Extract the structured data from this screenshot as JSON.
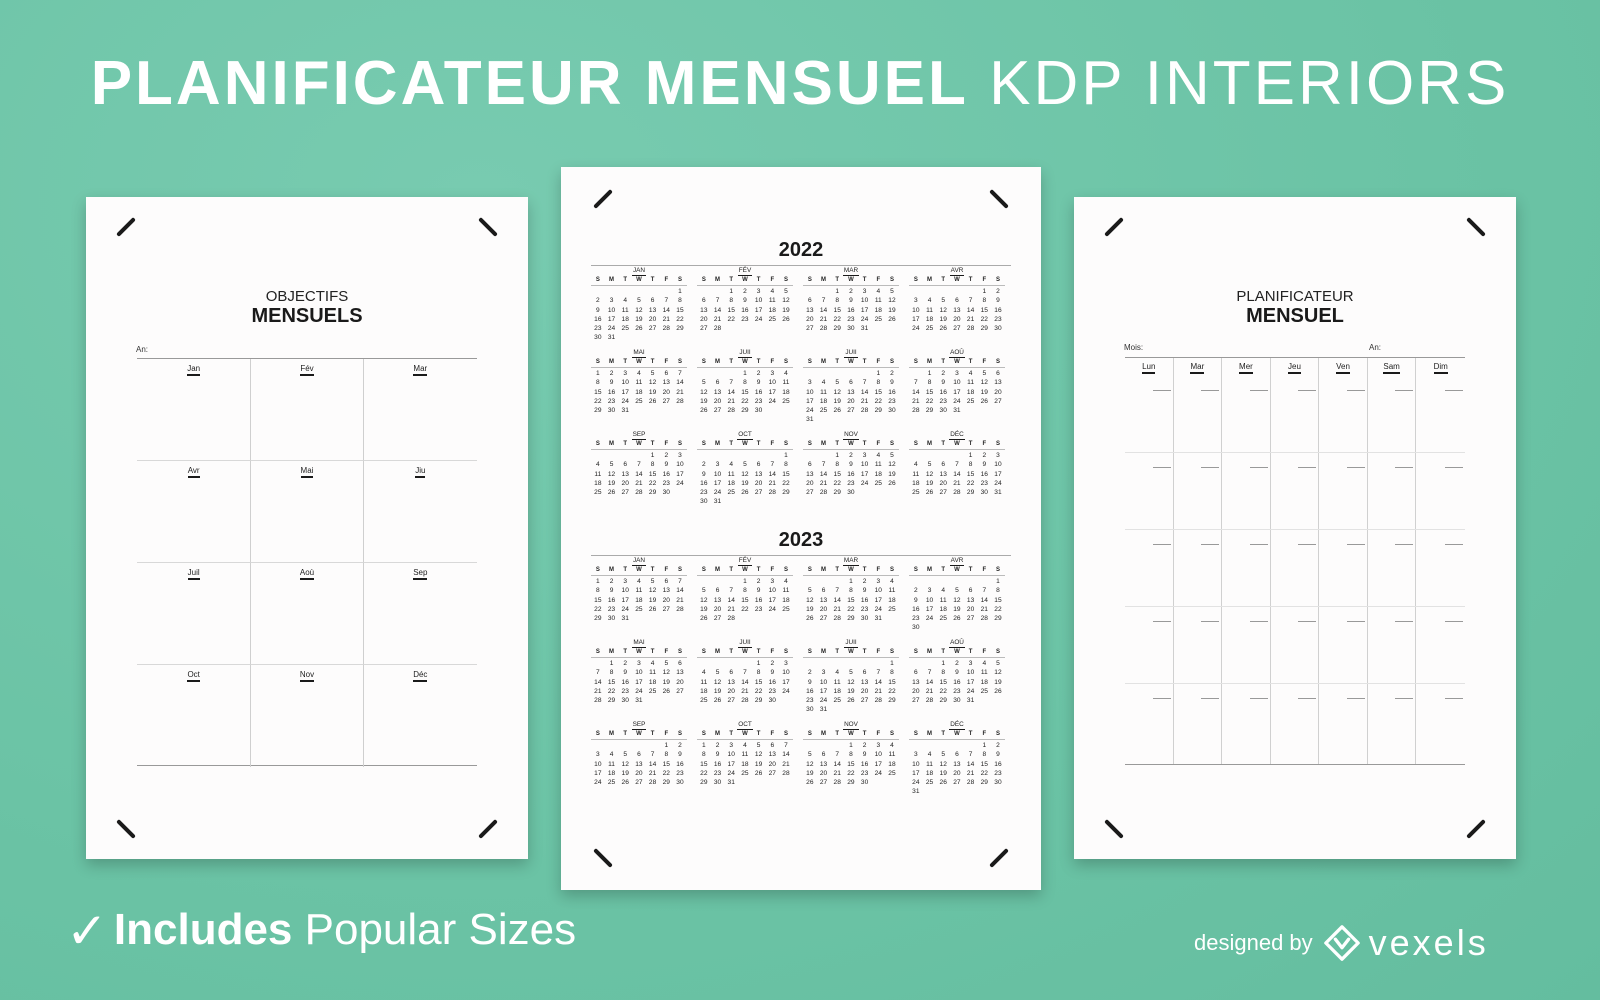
{
  "header": {
    "title_bold": "PLANIFICATEUR MENSUEL",
    "title_light": "KDP INTERIORS"
  },
  "objectifs": {
    "title_line1": "OBJECTIFS",
    "title_line2": "MENSUELS",
    "year_label": "An:",
    "months": [
      "Jan",
      "Fév",
      "Mar",
      "Avr",
      "Mai",
      "Jiu",
      "Juil",
      "Aoù",
      "Sep",
      "Oct",
      "Nov",
      "Déc"
    ]
  },
  "calendar": {
    "day_headers": [
      "S",
      "M",
      "T",
      "W",
      "T",
      "F",
      "S"
    ],
    "years": [
      {
        "year": "2022",
        "months": [
          {
            "name": "JAN",
            "start": 6,
            "days": 31
          },
          {
            "name": "FÉV",
            "start": 2,
            "days": 28
          },
          {
            "name": "MAR",
            "start": 2,
            "days": 31
          },
          {
            "name": "AVR",
            "start": 5,
            "days": 30
          },
          {
            "name": "MAI",
            "start": 0,
            "days": 31
          },
          {
            "name": "JUII",
            "start": 3,
            "days": 30
          },
          {
            "name": "JUII",
            "start": 5,
            "days": 31
          },
          {
            "name": "AOÛ",
            "start": 1,
            "days": 31
          },
          {
            "name": "SEP",
            "start": 4,
            "days": 30
          },
          {
            "name": "OCT",
            "start": 6,
            "days": 31
          },
          {
            "name": "NOV",
            "start": 2,
            "days": 30
          },
          {
            "name": "DÉC",
            "start": 4,
            "days": 31
          }
        ]
      },
      {
        "year": "2023",
        "months": [
          {
            "name": "JAN",
            "start": 0,
            "days": 31
          },
          {
            "name": "FÉV",
            "start": 3,
            "days": 28
          },
          {
            "name": "MAR",
            "start": 3,
            "days": 31
          },
          {
            "name": "AVR",
            "start": 6,
            "days": 30
          },
          {
            "name": "MAI",
            "start": 1,
            "days": 31
          },
          {
            "name": "JUII",
            "start": 4,
            "days": 30
          },
          {
            "name": "JUII",
            "start": 6,
            "days": 31
          },
          {
            "name": "AOÛ",
            "start": 2,
            "days": 31
          },
          {
            "name": "SEP",
            "start": 5,
            "days": 30
          },
          {
            "name": "OCT",
            "start": 0,
            "days": 31
          },
          {
            "name": "NOV",
            "start": 3,
            "days": 30
          },
          {
            "name": "DÉC",
            "start": 5,
            "days": 31
          }
        ]
      }
    ]
  },
  "planificateur": {
    "title_line1": "PLANIFICATEUR",
    "title_line2": "MENSUEL",
    "month_label": "Mois:",
    "year_label": "An:",
    "days": [
      "Lun",
      "Mar",
      "Mer",
      "Jeu",
      "Ven",
      "Sam",
      "Dim"
    ]
  },
  "footer": {
    "check_icon": "checkmark-icon",
    "includes_bold": "Includes",
    "includes_light": "Popular Sizes",
    "designed_by": "designed by",
    "brand": "vexels",
    "brand_icon": "vexels-logo-icon"
  }
}
